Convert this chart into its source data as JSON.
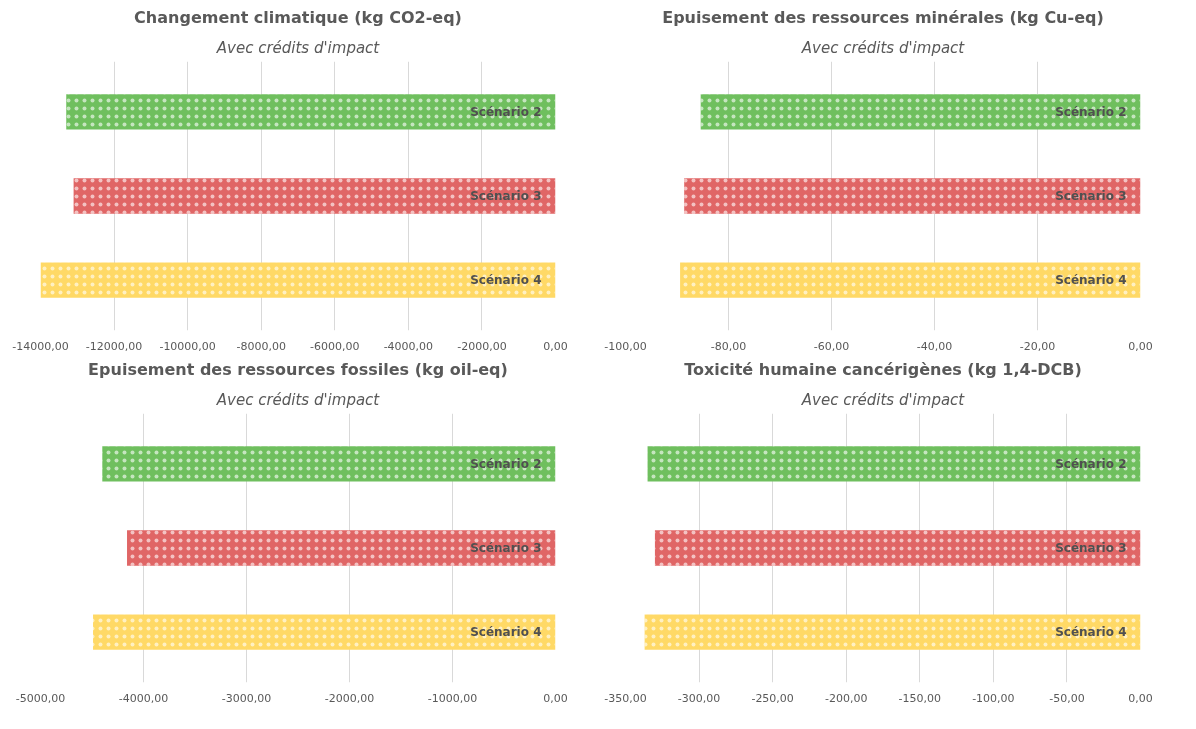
{
  "chart_data": [
    {
      "type": "bar",
      "orientation": "horizontal",
      "title": "Changement climatique (kg CO2-eq)",
      "subtitle": "Avec crédits d'impact",
      "categories": [
        "Scénario 2",
        "Scénario 3",
        "Scénario 4"
      ],
      "values": [
        -13300,
        -13100,
        -14000
      ],
      "colors": [
        "#6fbf5e",
        "#e06666",
        "#ffd966"
      ],
      "xlim": [
        -14000,
        0
      ],
      "xticks": [
        {
          "value": -14000,
          "label": "-14000,00"
        },
        {
          "value": -12000,
          "label": "-12000,00"
        },
        {
          "value": -10000,
          "label": "-10000,00"
        },
        {
          "value": -8000,
          "label": "-8000,00"
        },
        {
          "value": -6000,
          "label": "-6000,00"
        },
        {
          "value": -4000,
          "label": "-4000,00"
        },
        {
          "value": -2000,
          "label": "-2000,00"
        },
        {
          "value": 0,
          "label": "0,00"
        }
      ],
      "grid": "x"
    },
    {
      "type": "bar",
      "orientation": "horizontal",
      "title": "Epuisement des ressources minérales (kg Cu-eq)",
      "subtitle": "Avec crédits d'impact",
      "categories": [
        "Scénario 2",
        "Scénario 3",
        "Scénario 4"
      ],
      "values": [
        -85.4,
        -88.6,
        -89.4
      ],
      "colors": [
        "#6fbf5e",
        "#e06666",
        "#ffd966"
      ],
      "xlim": [
        -100,
        0
      ],
      "xticks": [
        {
          "value": -100,
          "label": "-100,00"
        },
        {
          "value": -80,
          "label": "-80,00"
        },
        {
          "value": -60,
          "label": "-60,00"
        },
        {
          "value": -40,
          "label": "-40,00"
        },
        {
          "value": -20,
          "label": "-20,00"
        },
        {
          "value": 0,
          "label": "0,00"
        }
      ],
      "grid": "x"
    },
    {
      "type": "bar",
      "orientation": "horizontal",
      "title": "Epuisement des ressources fossiles (kg oil-eq)",
      "subtitle": "Avec crédits d'impact",
      "categories": [
        "Scénario 2",
        "Scénario 3",
        "Scénario 4"
      ],
      "values": [
        -4400,
        -4160,
        -4490
      ],
      "colors": [
        "#6fbf5e",
        "#e06666",
        "#ffd966"
      ],
      "xlim": [
        -5000,
        0
      ],
      "xticks": [
        {
          "value": -5000,
          "label": "-5000,00"
        },
        {
          "value": -4000,
          "label": "-4000,00"
        },
        {
          "value": -3000,
          "label": "-3000,00"
        },
        {
          "value": -2000,
          "label": "-2000,00"
        },
        {
          "value": -1000,
          "label": "-1000,00"
        },
        {
          "value": 0,
          "label": "0,00"
        }
      ],
      "grid": "x"
    },
    {
      "type": "bar",
      "orientation": "horizontal",
      "title": "Toxicité humaine cancérigènes (kg 1,4-DCB)",
      "subtitle": "Avec crédits d'impact",
      "categories": [
        "Scénario 2",
        "Scénario 3",
        "Scénario 4"
      ],
      "values": [
        -335,
        -330,
        -337
      ],
      "colors": [
        "#6fbf5e",
        "#e06666",
        "#ffd966"
      ],
      "xlim": [
        -350,
        0
      ],
      "xticks": [
        {
          "value": -350,
          "label": "-350,00"
        },
        {
          "value": -300,
          "label": "-300,00"
        },
        {
          "value": -250,
          "label": "-250,00"
        },
        {
          "value": -200,
          "label": "-200,00"
        },
        {
          "value": -150,
          "label": "-150,00"
        },
        {
          "value": -100,
          "label": "-100,00"
        },
        {
          "value": -50,
          "label": "-50,00"
        },
        {
          "value": 0,
          "label": "0,00"
        }
      ],
      "grid": "x"
    }
  ]
}
